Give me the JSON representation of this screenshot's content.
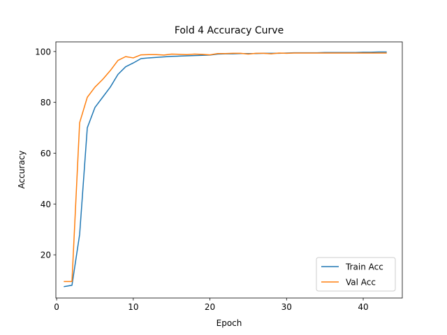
{
  "chart_data": {
    "type": "line",
    "title": "Fold 4 Accuracy Curve",
    "xlabel": "Epoch",
    "ylabel": "Accuracy",
    "xlim": [
      -0.1,
      45.1
    ],
    "ylim": [
      3.0,
      103.8
    ],
    "xticks": [
      0,
      10,
      20,
      30,
      40
    ],
    "yticks": [
      20,
      40,
      60,
      80,
      100
    ],
    "grid": false,
    "legend_position": "lower-right",
    "x": [
      1,
      2,
      3,
      4,
      5,
      6,
      7,
      8,
      9,
      10,
      11,
      12,
      13,
      14,
      15,
      16,
      17,
      18,
      19,
      20,
      21,
      22,
      23,
      24,
      25,
      26,
      27,
      28,
      29,
      30,
      31,
      32,
      33,
      34,
      35,
      36,
      37,
      38,
      39,
      40,
      41,
      42,
      43
    ],
    "series": [
      {
        "name": "Train Acc",
        "color": "#1f77b4",
        "values": [
          7.5,
          8.0,
          28.0,
          70.0,
          78.0,
          82.0,
          86.0,
          91.0,
          94.0,
          95.5,
          97.2,
          97.5,
          97.7,
          97.9,
          98.1,
          98.2,
          98.3,
          98.4,
          98.5,
          98.6,
          99.0,
          99.1,
          99.1,
          99.2,
          99.2,
          99.2,
          99.3,
          99.3,
          99.3,
          99.4,
          99.5,
          99.5,
          99.5,
          99.5,
          99.6,
          99.6,
          99.6,
          99.6,
          99.6,
          99.7,
          99.7,
          99.8,
          99.8
        ]
      },
      {
        "name": "Val Acc",
        "color": "#ff7f0e",
        "values": [
          9.5,
          9.5,
          72.0,
          82.0,
          86.0,
          89.0,
          92.5,
          96.5,
          98.0,
          97.5,
          98.7,
          98.8,
          98.8,
          98.6,
          99.0,
          98.9,
          98.8,
          99.0,
          98.9,
          98.7,
          99.2,
          99.2,
          99.3,
          99.3,
          99.0,
          99.3,
          99.3,
          99.1,
          99.4,
          99.3,
          99.4,
          99.4,
          99.4,
          99.4,
          99.4,
          99.4,
          99.4,
          99.4,
          99.4,
          99.4,
          99.4,
          99.4,
          99.4
        ]
      }
    ]
  }
}
